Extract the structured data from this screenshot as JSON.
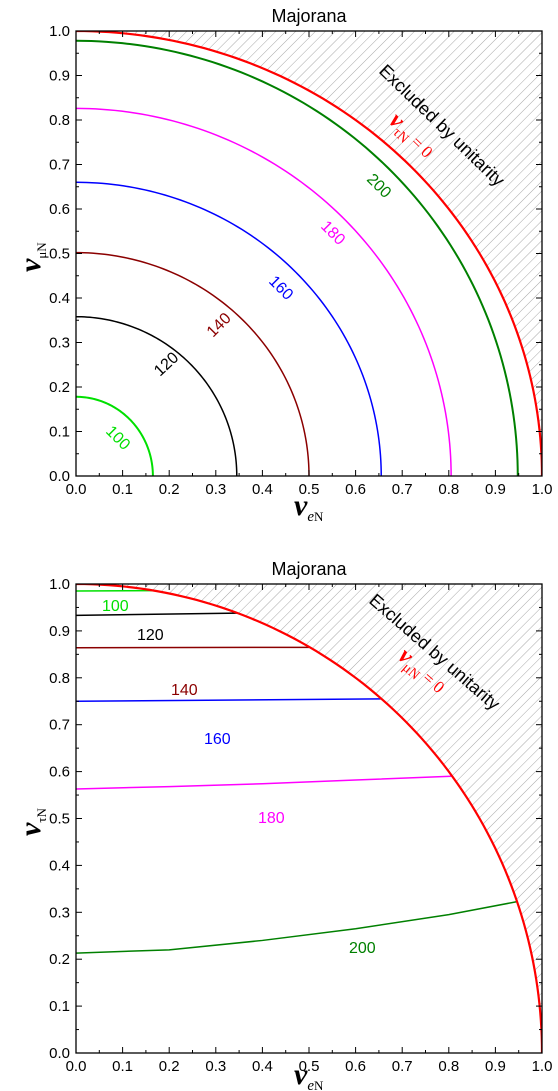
{
  "chart_data": [
    {
      "type": "line",
      "title": "Majorana",
      "xlabel": {
        "symbol": "ν",
        "subscript_italic": "e",
        "subscript": "N"
      },
      "ylabel": {
        "symbol": "ν",
        "subscript": "μN"
      },
      "xlim": [
        0,
        1
      ],
      "ylim": [
        0,
        1
      ],
      "xticks": [
        "0.0",
        "0.1",
        "0.2",
        "0.3",
        "0.4",
        "0.5",
        "0.6",
        "0.7",
        "0.8",
        "0.9",
        "1.0"
      ],
      "yticks": [
        "0.0",
        "0.1",
        "0.2",
        "0.3",
        "0.4",
        "0.5",
        "0.6",
        "0.7",
        "0.8",
        "0.9",
        "1.0"
      ],
      "grid": false,
      "region_label": "Excluded by unitarity",
      "boundary_label": {
        "symbol": "ν",
        "subscript": "τN",
        "rest": " = 0"
      },
      "series": [
        {
          "label": "100",
          "color": "#00e000",
          "x_intercept": 0.165,
          "y_intercept": 0.178
        },
        {
          "label": "120",
          "color": "#000000",
          "x_intercept": 0.345,
          "y_intercept": 0.358
        },
        {
          "label": "140",
          "color": "#8b0000",
          "x_intercept": 0.5,
          "y_intercept": 0.502
        },
        {
          "label": "160",
          "color": "#0000ff",
          "x_intercept": 0.655,
          "y_intercept": 0.66
        },
        {
          "label": "180",
          "color": "#ff00ff",
          "x_intercept": 0.805,
          "y_intercept": 0.826
        },
        {
          "label": "200",
          "color": "#008000",
          "x_intercept": 0.948,
          "y_intercept": 0.978
        },
        {
          "label": "",
          "color": "#ff0000",
          "x_intercept": 1.0,
          "y_intercept": 1.0
        }
      ]
    },
    {
      "type": "line",
      "title": "Majorana",
      "xlabel": {
        "symbol": "ν",
        "subscript_italic": "e",
        "subscript": "N"
      },
      "ylabel": {
        "symbol": "ν",
        "subscript": "τN"
      },
      "xlim": [
        0,
        1
      ],
      "ylim": [
        0,
        1
      ],
      "xticks": [
        "0.0",
        "0.1",
        "0.2",
        "0.3",
        "0.4",
        "0.5",
        "0.6",
        "0.7",
        "0.8",
        "0.9",
        "1.0"
      ],
      "yticks": [
        "0.0",
        "0.1",
        "0.2",
        "0.3",
        "0.4",
        "0.5",
        "0.6",
        "0.7",
        "0.8",
        "0.9",
        "1.0"
      ],
      "grid": false,
      "region_label": "Excluded by unitarity",
      "boundary_label": {
        "symbol": "ν",
        "subscript": "μN",
        "rest": " = 0"
      },
      "series": [
        {
          "label": "100",
          "color": "#00e000",
          "x": [
            0,
            0.165
          ],
          "y": [
            0.985,
            0.986
          ]
        },
        {
          "label": "120",
          "color": "#000000",
          "x": [
            0,
            0.345
          ],
          "y": [
            0.933,
            0.938
          ]
        },
        {
          "label": "140",
          "color": "#8b0000",
          "x": [
            0,
            0.5
          ],
          "y": [
            0.864,
            0.865
          ]
        },
        {
          "label": "160",
          "color": "#0000ff",
          "x": [
            0,
            0.655
          ],
          "y": [
            0.75,
            0.755
          ]
        },
        {
          "label": "180",
          "color": "#ff00ff",
          "x": [
            0,
            0.2,
            0.4,
            0.6,
            0.805
          ],
          "y": [
            0.563,
            0.568,
            0.574,
            0.582,
            0.59
          ]
        },
        {
          "label": "200",
          "color": "#008000",
          "x": [
            0,
            0.2,
            0.4,
            0.6,
            0.8,
            0.948
          ],
          "y": [
            0.213,
            0.22,
            0.24,
            0.265,
            0.295,
            0.323
          ]
        },
        {
          "label": "",
          "color": "#ff0000",
          "x_intercept": 1.0,
          "y_intercept": 1.0
        }
      ]
    }
  ]
}
